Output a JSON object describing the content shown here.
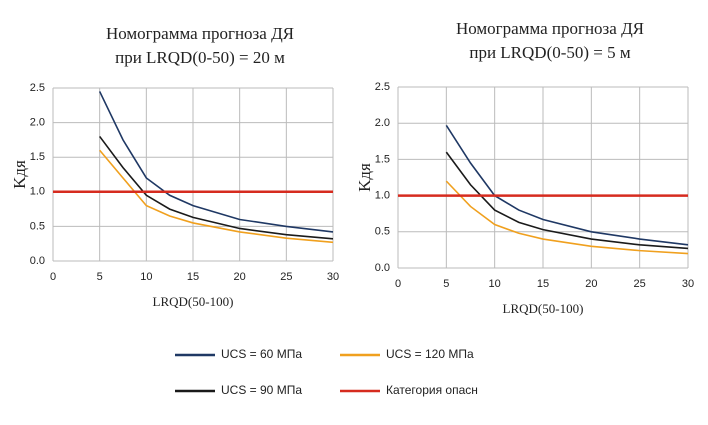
{
  "chart_data": [
    {
      "type": "line",
      "title": "Номограмма прогноза ДЯ",
      "subtitle": "при LRQD(0-50) = 20 м",
      "ylabel": "Kдя",
      "xlabel": "LRQD(50-100)",
      "x": [
        5,
        7.5,
        10,
        12.5,
        15,
        20,
        25,
        30
      ],
      "series": [
        {
          "name": "UCS = 60 МПа",
          "color": "#1f3864",
          "values": [
            2.45,
            1.75,
            1.2,
            0.95,
            0.8,
            0.6,
            0.5,
            0.42
          ]
        },
        {
          "name": "UCS = 120 МПа",
          "color": "#f0a01e",
          "values": [
            1.6,
            1.2,
            0.8,
            0.65,
            0.55,
            0.42,
            0.33,
            0.27
          ]
        },
        {
          "name": "UCS = 90 МПа",
          "color": "#1a1a1a",
          "values": [
            1.8,
            1.35,
            0.95,
            0.75,
            0.63,
            0.47,
            0.38,
            0.32
          ]
        },
        {
          "name": "Категория опасн",
          "color": "#d62b1f",
          "x": [
            0,
            30
          ],
          "values": [
            1,
            1
          ]
        }
      ],
      "xlim": [
        0,
        30
      ],
      "xticks": [
        0,
        5,
        10,
        15,
        20,
        25,
        30
      ],
      "ylim": [
        0,
        2.5
      ],
      "yticks": [
        {
          "value": 0,
          "label": "0.0"
        },
        {
          "value": 0.5,
          "label": "0.5"
        },
        {
          "value": 1,
          "label": "1.0"
        },
        {
          "value": 1.5,
          "label": "1.5"
        },
        {
          "value": 2,
          "label": "2.0"
        },
        {
          "value": 2.5,
          "label": "2.5"
        }
      ],
      "grid": true
    },
    {
      "type": "line",
      "title": "Номограмма прогноза ДЯ",
      "subtitle": "при LRQD(0-50) = 5 м",
      "ylabel": "Kдя",
      "xlabel": "LRQD(50-100)",
      "x": [
        5,
        7.5,
        10,
        12.5,
        15,
        20,
        25,
        30
      ],
      "series": [
        {
          "color": "#1f3864",
          "values": [
            1.97,
            1.45,
            1.0,
            0.8,
            0.67,
            0.5,
            0.4,
            0.32
          ]
        },
        {
          "color": "#f0a01e",
          "values": [
            1.2,
            0.85,
            0.6,
            0.48,
            0.4,
            0.3,
            0.24,
            0.2
          ]
        },
        {
          "color": "#1a1a1a",
          "values": [
            1.6,
            1.15,
            0.8,
            0.63,
            0.53,
            0.4,
            0.32,
            0.27
          ]
        },
        {
          "color": "#d62b1f",
          "x": [
            0,
            30
          ],
          "values": [
            1,
            1
          ]
        }
      ],
      "xlim": [
        0,
        30
      ],
      "xticks": [
        0,
        5,
        10,
        15,
        20,
        25,
        30
      ],
      "ylim": [
        0,
        2.5
      ],
      "yticks": [
        {
          "value": 0,
          "label": "0.0"
        },
        {
          "value": 0.5,
          "label": "0.5"
        },
        {
          "value": 1,
          "label": "1.0"
        },
        {
          "value": 1.5,
          "label": "1.5"
        },
        {
          "value": 2,
          "label": "2.0"
        },
        {
          "value": 2.5,
          "label": "2.5"
        }
      ],
      "grid": true
    }
  ]
}
